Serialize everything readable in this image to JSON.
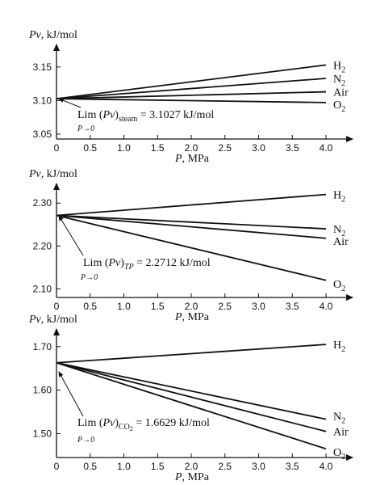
{
  "chart_data": [
    {
      "type": "line",
      "title": "",
      "ylabel": "Pv, kJ/mol",
      "xlabel": "P, MPa",
      "xlim": [
        0,
        4.2
      ],
      "ylim": [
        3.045,
        3.18
      ],
      "xticks": [
        "0",
        "0.5",
        "1.0",
        "1.5",
        "2.0",
        "2.5",
        "3.0",
        "3.5",
        "4.0"
      ],
      "yticks": [
        "3.05",
        "3.10",
        "3.15"
      ],
      "ytick_values": [
        3.05,
        3.1,
        3.15
      ],
      "series": [
        {
          "name": "H2",
          "x": [
            0,
            4.0
          ],
          "y": [
            3.1027,
            3.153
          ]
        },
        {
          "name": "N2",
          "x": [
            0,
            4.0
          ],
          "y": [
            3.1027,
            3.133
          ]
        },
        {
          "name": "Air",
          "x": [
            0,
            4.0
          ],
          "y": [
            3.1027,
            3.113
          ]
        },
        {
          "name": "O2",
          "x": [
            0,
            4.0
          ],
          "y": [
            3.1027,
            3.097
          ]
        }
      ],
      "annotation": {
        "prefix": "Lim (",
        "pv": "Pv",
        "suffix": ")",
        "subscript": "steam",
        "value": " = 3.1027 kJ/mol",
        "limit": "P→0"
      }
    },
    {
      "type": "line",
      "title": "",
      "ylabel": "Pv, kJ/mol",
      "xlabel": "P, MPa",
      "xlim": [
        0,
        4.2
      ],
      "ylim": [
        2.08,
        2.34
      ],
      "xticks": [
        "0",
        "0.5",
        "1.0",
        "1.5",
        "2.0",
        "2.5",
        "3.0",
        "3.5",
        "4.0"
      ],
      "yticks": [
        "2.10",
        "2.20",
        "2.30"
      ],
      "ytick_values": [
        2.1,
        2.2,
        2.3
      ],
      "series": [
        {
          "name": "H2",
          "x": [
            0,
            4.0
          ],
          "y": [
            2.2712,
            2.32
          ]
        },
        {
          "name": "N2",
          "x": [
            0,
            4.0
          ],
          "y": [
            2.2712,
            2.24
          ]
        },
        {
          "name": "Air",
          "x": [
            0,
            4.0
          ],
          "y": [
            2.2712,
            2.218
          ]
        },
        {
          "name": "O2",
          "x": [
            0,
            4.0
          ],
          "y": [
            2.2712,
            2.12
          ]
        }
      ],
      "annotation": {
        "prefix": "Lim (",
        "pv": "Pv",
        "suffix": ")",
        "subscript": "TP",
        "value": " = 2.2712 kJ/mol",
        "limit": "P→0"
      }
    },
    {
      "type": "line",
      "title": "",
      "ylabel": "Pv, kJ/mol",
      "xlabel": "P, MPa",
      "xlim": [
        0,
        4.2
      ],
      "ylim": [
        1.445,
        1.735
      ],
      "xticks": [
        "0",
        "0.5",
        "1.0",
        "1.5",
        "2.0",
        "2.5",
        "3.0",
        "3.5",
        "4.0"
      ],
      "yticks": [
        "1.50",
        "1.60",
        "1.70"
      ],
      "ytick_values": [
        1.5,
        1.6,
        1.7
      ],
      "series": [
        {
          "name": "H2",
          "x": [
            0,
            4.0
          ],
          "y": [
            1.6629,
            1.705
          ]
        },
        {
          "name": "N2",
          "x": [
            0,
            4.0
          ],
          "y": [
            1.6629,
            1.533
          ]
        },
        {
          "name": "Air",
          "x": [
            0,
            4.0
          ],
          "y": [
            1.6629,
            1.505
          ]
        },
        {
          "name": "O2",
          "x": [
            0,
            4.0
          ],
          "y": [
            1.6629,
            1.465
          ]
        }
      ],
      "annotation": {
        "prefix": "Lim (",
        "pv": "Pv",
        "suffix": ")",
        "subscript": "CO2",
        "value": " = 1.6629 kJ/mol",
        "limit": "P→0"
      }
    }
  ]
}
